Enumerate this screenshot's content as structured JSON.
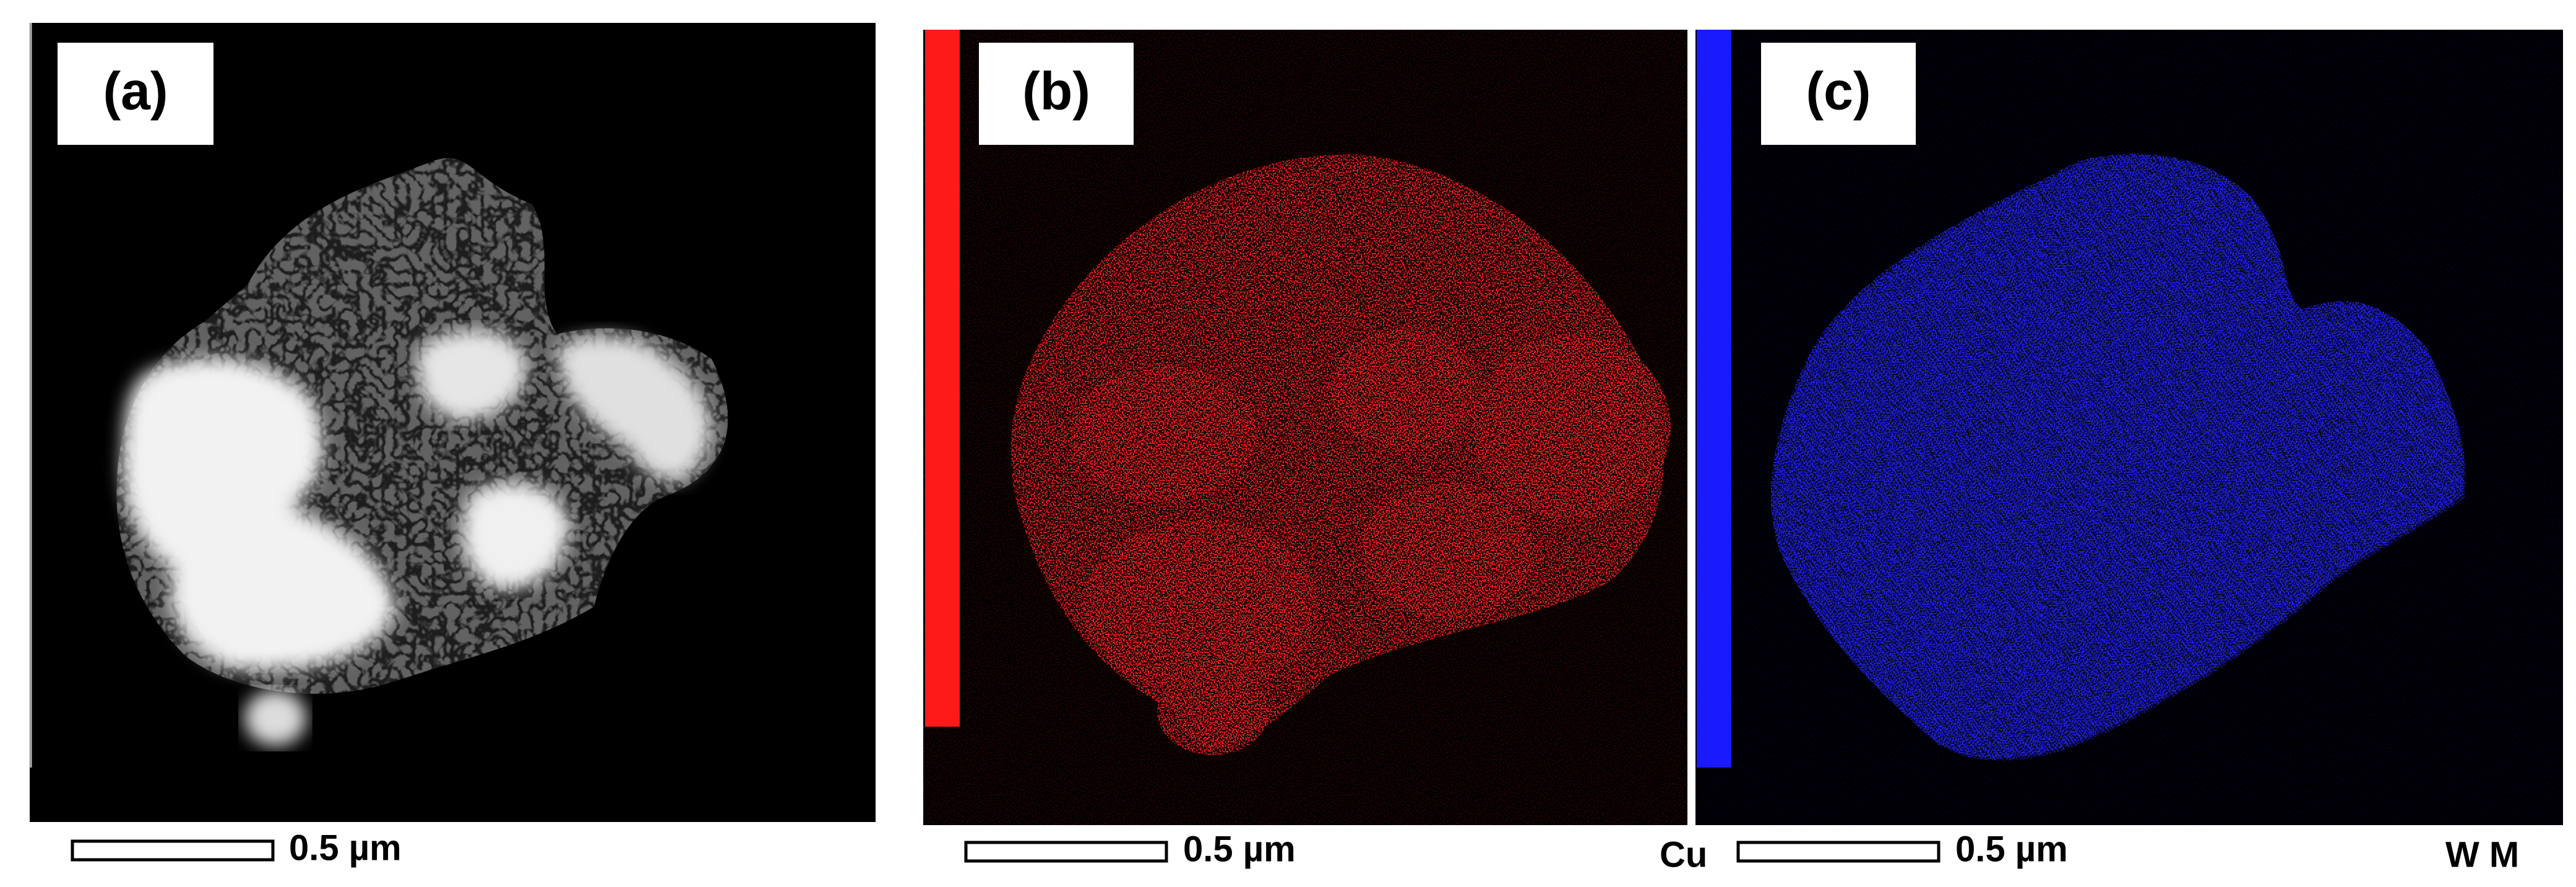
{
  "panels": [
    {
      "label": "(a)",
      "scale_bar": "0.5 µm"
    },
    {
      "label": "(b)",
      "scale_bar": "0.5 µm",
      "element": "Cu"
    },
    {
      "label": "(c)",
      "scale_bar": "0.5 µm",
      "element": "W M"
    }
  ]
}
